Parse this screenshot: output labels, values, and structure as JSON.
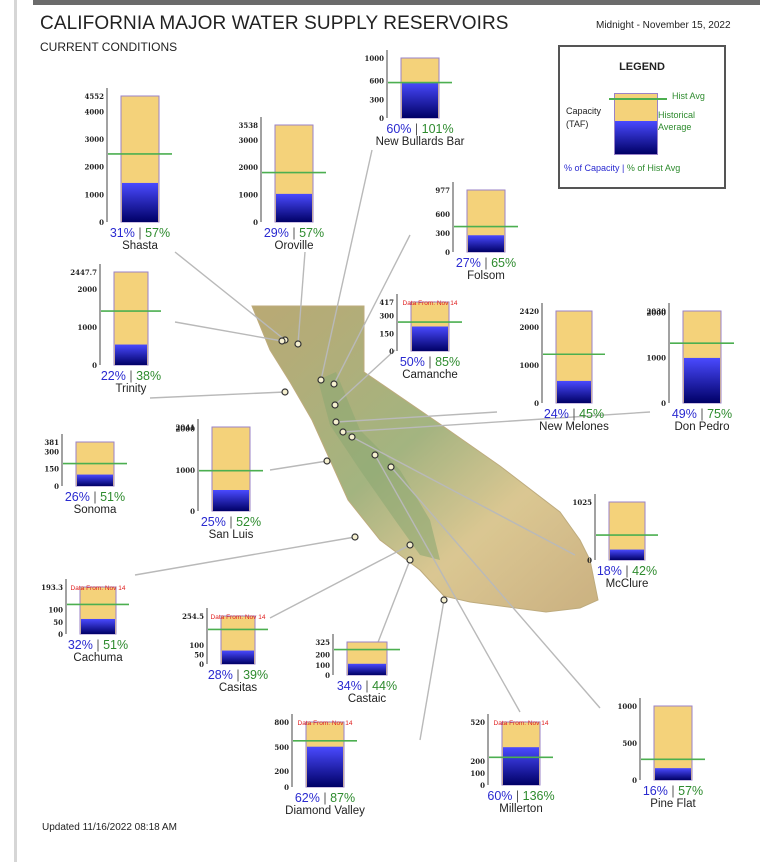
{
  "header": {
    "title": "CALIFORNIA MAJOR WATER SUPPLY RESERVOIRS",
    "subtitle": "CURRENT CONDITIONS",
    "timestamp": "Midnight - November 15, 2022",
    "updated": "Updated 11/16/2022 08:18 AM"
  },
  "legend": {
    "title": "LEGEND",
    "capacity_label_1": "Capacity",
    "capacity_label_2": "(TAF)",
    "hist_avg": "Hist Avg",
    "historical_1": "Historical",
    "historical_2": "Average",
    "pct_capacity": "% of Capacity",
    "pct_hist": "% of Hist Avg"
  },
  "colors": {
    "capacity": "#f4d27a",
    "storage_top": "#4a4aff",
    "storage_bottom": "#000066",
    "hist_avg": "#4caf50",
    "pct_capacity_text": "#2a2ad0",
    "pct_hist_text": "#2e8b2e",
    "note_text": "#e02020",
    "land": "#c9b583"
  },
  "chart_data": {
    "type": "bar",
    "series_meaning": [
      "storage (% of capacity)",
      "historical average"
    ],
    "reservoirs": [
      {
        "name": "Shasta",
        "capacity": 4552,
        "ticks": [
          "4552",
          "4000",
          "3000",
          "2000",
          "1000",
          "0"
        ],
        "pct_capacity": 31,
        "pct_hist": 57,
        "pct_capacity_label": "31%",
        "pct_hist_label": "57%",
        "hist_avg_fraction": 0.54,
        "note": ""
      },
      {
        "name": "Oroville",
        "capacity": 3538,
        "ticks": [
          "3538",
          "3000",
          "2000",
          "1000",
          "0"
        ],
        "pct_capacity": 29,
        "pct_hist": 57,
        "pct_capacity_label": "29%",
        "pct_hist_label": "57%",
        "hist_avg_fraction": 0.51,
        "note": ""
      },
      {
        "name": "New Bullards Bar",
        "capacity": 966,
        "ticks": [
          "1000",
          "600",
          "300",
          "0"
        ],
        "pct_capacity": 60,
        "pct_hist": 101,
        "pct_capacity_label": "60%",
        "pct_hist_label": "101%",
        "hist_avg_fraction": 0.59,
        "note": ""
      },
      {
        "name": "Folsom",
        "capacity": 977,
        "ticks": [
          "977",
          "600",
          "300",
          "0"
        ],
        "pct_capacity": 27,
        "pct_hist": 65,
        "pct_capacity_label": "27%",
        "pct_hist_label": "65%",
        "hist_avg_fraction": 0.41,
        "note": ""
      },
      {
        "name": "Trinity",
        "capacity": 2447.7,
        "ticks": [
          "2447.7",
          "2000",
          "1000",
          "0"
        ],
        "pct_capacity": 22,
        "pct_hist": 38,
        "pct_capacity_label": "22%",
        "pct_hist_label": "38%",
        "hist_avg_fraction": 0.58,
        "note": ""
      },
      {
        "name": "Camanche",
        "capacity": 417,
        "ticks": [
          "417",
          "300",
          "150",
          "0"
        ],
        "pct_capacity": 50,
        "pct_hist": 85,
        "pct_capacity_label": "50%",
        "pct_hist_label": "85%",
        "hist_avg_fraction": 0.59,
        "note": "Data From: Nov 14"
      },
      {
        "name": "New Melones",
        "capacity": 2420,
        "ticks": [
          "2420",
          "2000",
          "1000",
          "0"
        ],
        "pct_capacity": 24,
        "pct_hist": 45,
        "pct_capacity_label": "24%",
        "pct_hist_label": "45%",
        "hist_avg_fraction": 0.53,
        "note": ""
      },
      {
        "name": "Don Pedro",
        "capacity": 2030,
        "ticks": [
          "2030",
          "2000",
          "1000",
          "0"
        ],
        "pct_capacity": 49,
        "pct_hist": 75,
        "pct_capacity_label": "49%",
        "pct_hist_label": "75%",
        "hist_avg_fraction": 0.65,
        "note": ""
      },
      {
        "name": "Sonoma",
        "capacity": 381,
        "ticks": [
          "381",
          "300",
          "150",
          "0"
        ],
        "pct_capacity": 26,
        "pct_hist": 51,
        "pct_capacity_label": "26%",
        "pct_hist_label": "51%",
        "hist_avg_fraction": 0.51,
        "note": ""
      },
      {
        "name": "San Luis",
        "capacity": 2041,
        "ticks": [
          "2041",
          "2000",
          "1000",
          "0"
        ],
        "pct_capacity": 25,
        "pct_hist": 52,
        "pct_capacity_label": "25%",
        "pct_hist_label": "52%",
        "hist_avg_fraction": 0.48,
        "note": ""
      },
      {
        "name": "McClure",
        "capacity": 1025,
        "ticks": [
          "1025",
          "0"
        ],
        "pct_capacity": 18,
        "pct_hist": 42,
        "pct_capacity_label": "18%",
        "pct_hist_label": "42%",
        "hist_avg_fraction": 0.43,
        "note": ""
      },
      {
        "name": "Cachuma",
        "capacity": 193.3,
        "ticks": [
          "193.3",
          "100",
          "50",
          "0"
        ],
        "pct_capacity": 32,
        "pct_hist": 51,
        "pct_capacity_label": "32%",
        "pct_hist_label": "51%",
        "hist_avg_fraction": 0.63,
        "note": "Data From: Nov 14"
      },
      {
        "name": "Casitas",
        "capacity": 254.5,
        "ticks": [
          "254.5",
          "100",
          "50",
          "0"
        ],
        "pct_capacity": 28,
        "pct_hist": 39,
        "pct_capacity_label": "28%",
        "pct_hist_label": "39%",
        "hist_avg_fraction": 0.72,
        "note": "Data From: Nov 14"
      },
      {
        "name": "Castaic",
        "capacity": 325,
        "ticks": [
          "325",
          "200",
          "100",
          "0"
        ],
        "pct_capacity": 34,
        "pct_hist": 44,
        "pct_capacity_label": "34%",
        "pct_hist_label": "44%",
        "hist_avg_fraction": 0.77,
        "note": ""
      },
      {
        "name": "Diamond Valley",
        "capacity": 810,
        "ticks": [
          "800",
          "500",
          "200",
          "0"
        ],
        "pct_capacity": 62,
        "pct_hist": 87,
        "pct_capacity_label": "62%",
        "pct_hist_label": "87%",
        "hist_avg_fraction": 0.71,
        "note": "Data From: Nov 14"
      },
      {
        "name": "Millerton",
        "capacity": 520,
        "ticks": [
          "520",
          "200",
          "100",
          "0"
        ],
        "pct_capacity": 60,
        "pct_hist": 136,
        "pct_capacity_label": "60%",
        "pct_hist_label": "136%",
        "hist_avg_fraction": 0.44,
        "note": "Data From: Nov 14"
      },
      {
        "name": "Pine Flat",
        "capacity": 1000,
        "ticks": [
          "1000",
          "500",
          "0"
        ],
        "pct_capacity": 16,
        "pct_hist": 57,
        "pct_capacity_label": "16%",
        "pct_hist_label": "57%",
        "hist_avg_fraction": 0.28,
        "note": ""
      }
    ]
  }
}
